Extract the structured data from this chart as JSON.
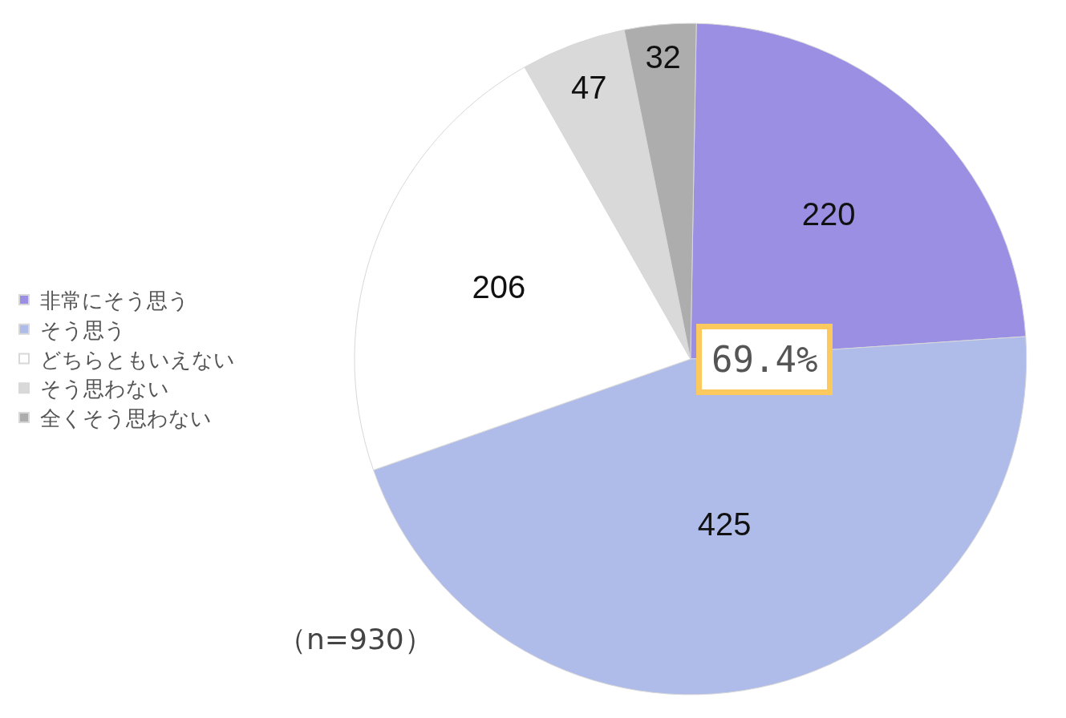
{
  "chart_data": {
    "type": "pie",
    "categories": [
      "非常にそう思う",
      "そう思う",
      "どちらともいえない",
      "そう思わない",
      "全くそう思わない"
    ],
    "values": [
      220,
      425,
      206,
      47,
      32
    ],
    "colors": [
      "#9b8fe3",
      "#afbce9",
      "#ffffff",
      "#d9d9d9",
      "#adadad"
    ],
    "data_labels": true,
    "legend": "left",
    "annotations": [
      "69.4%",
      "（n=930）"
    ]
  }
}
